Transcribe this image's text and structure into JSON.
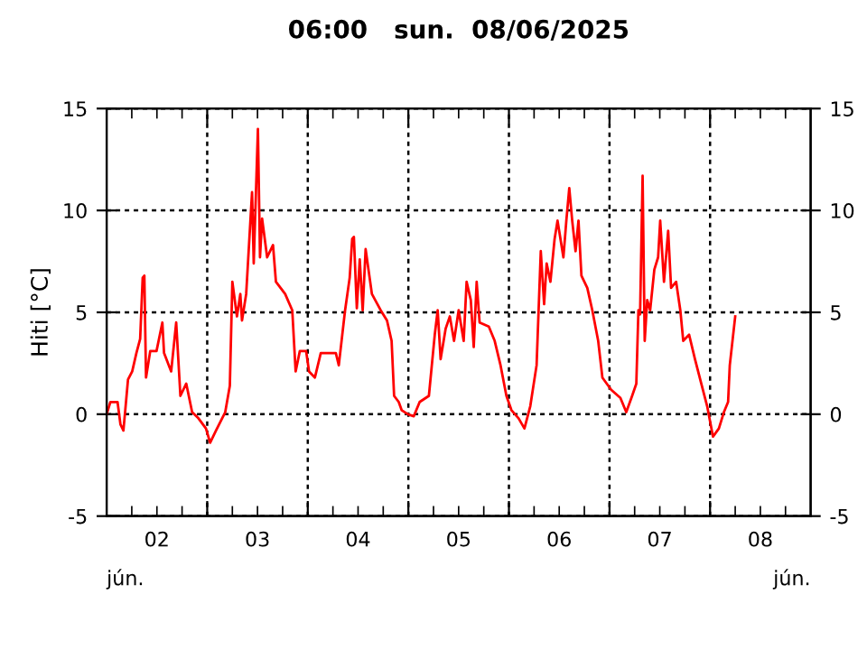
{
  "chart_data": {
    "type": "line",
    "title": "06:00   sun.  08/06/2025",
    "ylabel": "Hiti [°C]",
    "annotations": [
      "jún.",
      "jún."
    ],
    "x": [
      "2025-06-02T00:00",
      "2025-06-02T00:54",
      "2025-06-02T02:36",
      "2025-06-02T03:18",
      "2025-06-02T04:00",
      "2025-06-02T04:24",
      "2025-06-02T05:06",
      "2025-06-02T06:06",
      "2025-06-02T07:06",
      "2025-06-02T08:00",
      "2025-06-02T08:36",
      "2025-06-02T09:00",
      "2025-06-02T09:24",
      "2025-06-02T10:24",
      "2025-06-02T11:54",
      "2025-06-02T13:18",
      "2025-06-02T13:42",
      "2025-06-02T15:24",
      "2025-06-02T16:36",
      "2025-06-02T17:36",
      "2025-06-02T19:00",
      "2025-06-02T20:24",
      "2025-06-02T21:54",
      "2025-06-02T23:42",
      "2025-06-03T00:42",
      "2025-06-03T02:06",
      "2025-06-03T04:18",
      "2025-06-03T05:24",
      "2025-06-03T06:00",
      "2025-06-03T07:06",
      "2025-06-03T07:54",
      "2025-06-03T08:18",
      "2025-06-03T09:18",
      "2025-06-03T10:42",
      "2025-06-03T11:06",
      "2025-06-03T12:06",
      "2025-06-03T12:36",
      "2025-06-03T13:06",
      "2025-06-03T14:18",
      "2025-06-03T15:42",
      "2025-06-03T16:24",
      "2025-06-03T18:36",
      "2025-06-03T20:18",
      "2025-06-03T21:06",
      "2025-06-03T22:06",
      "2025-06-03T23:36",
      "2025-06-04T00:18",
      "2025-06-04T01:42",
      "2025-06-04T03:06",
      "2025-06-04T05:18",
      "2025-06-04T06:42",
      "2025-06-04T07:24",
      "2025-06-04T08:54",
      "2025-06-04T10:00",
      "2025-06-04T10:36",
      "2025-06-04T11:00",
      "2025-06-04T11:42",
      "2025-06-04T12:24",
      "2025-06-04T13:06",
      "2025-06-04T13:48",
      "2025-06-04T15:18",
      "2025-06-04T17:24",
      "2025-06-04T18:54",
      "2025-06-04T20:00",
      "2025-06-04T20:36",
      "2025-06-04T21:42",
      "2025-06-04T22:24",
      "2025-06-04T23:54",
      "2025-06-05T01:18",
      "2025-06-05T02:42",
      "2025-06-05T04:54",
      "2025-06-05T05:36",
      "2025-06-05T06:18",
      "2025-06-05T07:00",
      "2025-06-05T07:42",
      "2025-06-05T08:54",
      "2025-06-05T09:54",
      "2025-06-05T10:54",
      "2025-06-05T12:00",
      "2025-06-05T13:12",
      "2025-06-05T13:54",
      "2025-06-05T14:54",
      "2025-06-05T15:36",
      "2025-06-05T16:18",
      "2025-06-05T17:00",
      "2025-06-05T19:12",
      "2025-06-05T20:36",
      "2025-06-05T22:00",
      "2025-06-05T23:24",
      "2025-06-06T00:36",
      "2025-06-06T02:18",
      "2025-06-06T03:42",
      "2025-06-06T05:06",
      "2025-06-06T06:36",
      "2025-06-06T07:36",
      "2025-06-06T08:24",
      "2025-06-06T09:00",
      "2025-06-06T09:54",
      "2025-06-06T10:54",
      "2025-06-06T11:36",
      "2025-06-06T13:00",
      "2025-06-06T13:42",
      "2025-06-06T14:24",
      "2025-06-06T15:06",
      "2025-06-06T15:54",
      "2025-06-06T16:36",
      "2025-06-06T17:18",
      "2025-06-06T18:42",
      "2025-06-06T19:54",
      "2025-06-06T21:18",
      "2025-06-06T22:18",
      "2025-06-07T00:24",
      "2025-06-07T02:36",
      "2025-06-07T04:00",
      "2025-06-07T05:24",
      "2025-06-07T06:24",
      "2025-06-07T06:54",
      "2025-06-07T07:18",
      "2025-06-07T07:54",
      "2025-06-07T08:24",
      "2025-06-07T09:00",
      "2025-06-07T09:42",
      "2025-06-07T10:42",
      "2025-06-07T11:36",
      "2025-06-07T12:06",
      "2025-06-07T13:00",
      "2025-06-07T14:00",
      "2025-06-07T14:42",
      "2025-06-07T15:54",
      "2025-06-07T16:54",
      "2025-06-07T17:36",
      "2025-06-07T19:00",
      "2025-06-07T20:24",
      "2025-06-07T21:54",
      "2025-06-07T23:18",
      "2025-06-08T00:42",
      "2025-06-08T02:06",
      "2025-06-08T03:18",
      "2025-06-08T04:18",
      "2025-06-08T04:42",
      "2025-06-08T06:00"
    ],
    "series": [
      {
        "color": "#ff0000",
        "values": [
          0.0,
          0.6,
          0.6,
          -0.5,
          -0.8,
          0.1,
          1.7,
          2.1,
          3.0,
          3.7,
          6.7,
          6.8,
          1.8,
          3.1,
          3.1,
          4.5,
          3.0,
          2.1,
          4.5,
          0.9,
          1.5,
          0.1,
          -0.2,
          -0.7,
          -1.4,
          -0.8,
          0.1,
          1.4,
          6.5,
          4.8,
          5.9,
          4.6,
          5.9,
          10.9,
          7.4,
          14.0,
          7.7,
          9.6,
          7.7,
          8.3,
          6.5,
          5.9,
          5.1,
          2.1,
          3.1,
          3.1,
          2.1,
          1.8,
          3.0,
          3.0,
          3.0,
          2.4,
          5.1,
          6.7,
          8.6,
          8.7,
          5.2,
          7.6,
          5.1,
          8.1,
          5.9,
          5.1,
          4.6,
          3.6,
          0.9,
          0.6,
          0.2,
          0.0,
          -0.1,
          0.6,
          0.9,
          2.4,
          3.9,
          5.1,
          2.7,
          4.2,
          4.8,
          3.6,
          5.1,
          3.6,
          6.5,
          5.6,
          3.3,
          6.5,
          4.5,
          4.3,
          3.6,
          2.4,
          0.9,
          0.2,
          -0.2,
          -0.7,
          0.4,
          2.4,
          8.0,
          5.4,
          7.4,
          6.5,
          8.6,
          9.5,
          7.7,
          9.5,
          11.1,
          9.5,
          8.0,
          9.5,
          6.8,
          6.2,
          5.1,
          3.6,
          1.8,
          1.2,
          0.8,
          0.1,
          0.9,
          1.5,
          5.1,
          4.9,
          11.7,
          3.6,
          5.6,
          5.1,
          7.1,
          7.7,
          9.5,
          6.5,
          9.0,
          6.2,
          6.5,
          5.1,
          3.6,
          3.9,
          2.7,
          1.5,
          0.4,
          -1.1,
          -0.7,
          0.1,
          0.6,
          2.4,
          4.8
        ]
      }
    ],
    "xlim": [
      "2025-06-02T00:00",
      "2025-06-09T00:00"
    ],
    "xticks": [
      {
        "value": "2025-06-02T06:00",
        "label": null
      },
      {
        "value": "2025-06-02T12:00",
        "label": "02"
      },
      {
        "value": "2025-06-02T18:00",
        "label": null
      },
      {
        "value": "2025-06-03T00:00",
        "label": null
      },
      {
        "value": "2025-06-03T06:00",
        "label": null
      },
      {
        "value": "2025-06-03T12:00",
        "label": "03"
      },
      {
        "value": "2025-06-03T18:00",
        "label": null
      },
      {
        "value": "2025-06-04T00:00",
        "label": null
      },
      {
        "value": "2025-06-04T06:00",
        "label": null
      },
      {
        "value": "2025-06-04T12:00",
        "label": "04"
      },
      {
        "value": "2025-06-04T18:00",
        "label": null
      },
      {
        "value": "2025-06-05T00:00",
        "label": null
      },
      {
        "value": "2025-06-05T06:00",
        "label": null
      },
      {
        "value": "2025-06-05T12:00",
        "label": "05"
      },
      {
        "value": "2025-06-05T18:00",
        "label": null
      },
      {
        "value": "2025-06-06T00:00",
        "label": null
      },
      {
        "value": "2025-06-06T06:00",
        "label": null
      },
      {
        "value": "2025-06-06T12:00",
        "label": "06"
      },
      {
        "value": "2025-06-06T18:00",
        "label": null
      },
      {
        "value": "2025-06-07T00:00",
        "label": null
      },
      {
        "value": "2025-06-07T06:00",
        "label": null
      },
      {
        "value": "2025-06-07T12:00",
        "label": "07"
      },
      {
        "value": "2025-06-07T18:00",
        "label": null
      },
      {
        "value": "2025-06-08T00:00",
        "label": null
      },
      {
        "value": "2025-06-08T06:00",
        "label": null
      },
      {
        "value": "2025-06-08T12:00",
        "label": "08"
      },
      {
        "value": "2025-06-08T18:00",
        "label": null
      }
    ],
    "ylim": [
      -5,
      15
    ],
    "yticks": [
      -5,
      0,
      5,
      10,
      15
    ],
    "y2lim": [
      -5,
      15
    ],
    "y2ticks": [
      -5,
      0,
      5,
      10,
      15
    ],
    "grid": true,
    "legend": false,
    "marker": "none",
    "line_style": "solid"
  }
}
